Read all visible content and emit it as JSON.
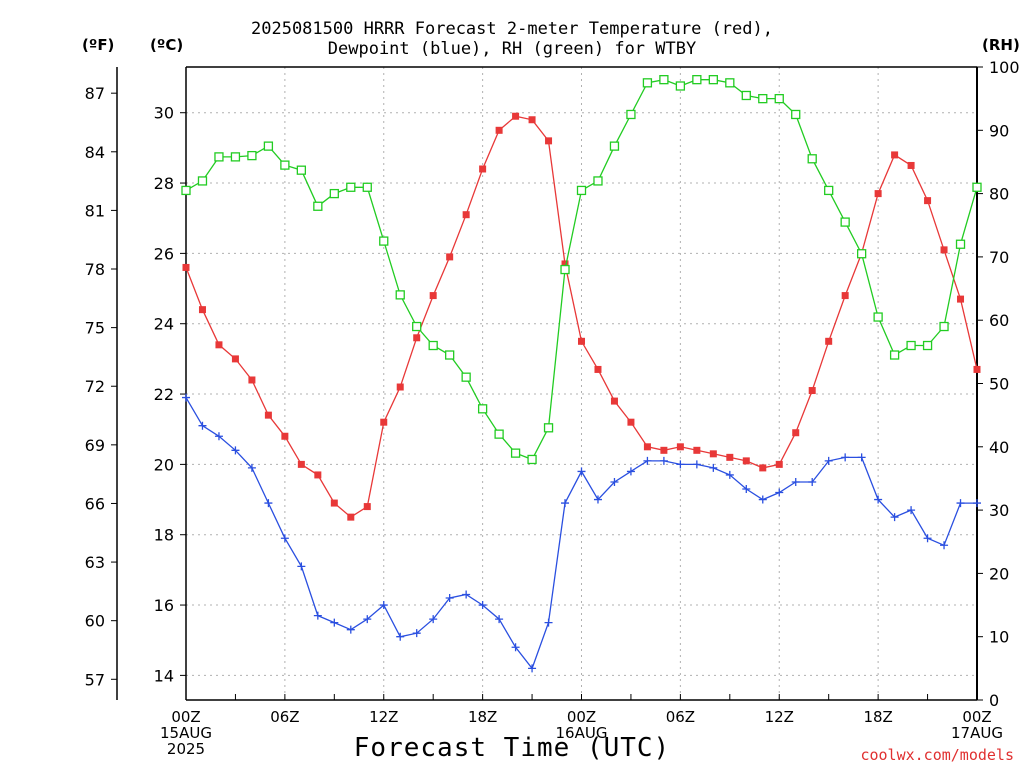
{
  "title_line1": "2025081500 HRRR Forecast 2-meter Temperature (red),",
  "title_line2": "Dewpoint (blue), RH (green) for WTBY",
  "unit_f": "(ºF)",
  "unit_c": "(ºC)",
  "unit_rh": "(RH)",
  "xaxis_title": "Forecast Time (UTC)",
  "watermark": "coolwx.com/models",
  "colors": {
    "temperature": "#e83838",
    "dewpoint": "#2a4fe0",
    "rh": "#22cc22",
    "grid": "#b0b0b0"
  },
  "chart_data": {
    "type": "line",
    "x_hours": [
      0,
      1,
      2,
      3,
      4,
      5,
      6,
      7,
      8,
      9,
      10,
      11,
      12,
      13,
      14,
      15,
      16,
      17,
      18,
      19,
      20,
      21,
      22,
      23,
      24,
      25,
      26,
      27,
      28,
      29,
      30,
      31,
      32,
      33,
      34,
      35,
      36,
      37,
      38,
      39,
      40,
      41,
      42,
      43,
      44,
      45,
      46,
      47,
      48
    ],
    "x_ticks": [
      {
        "hour": 0,
        "lines": [
          "00Z",
          "15AUG",
          "2025"
        ]
      },
      {
        "hour": 6,
        "lines": [
          "06Z"
        ]
      },
      {
        "hour": 12,
        "lines": [
          "12Z"
        ]
      },
      {
        "hour": 18,
        "lines": [
          "18Z"
        ]
      },
      {
        "hour": 24,
        "lines": [
          "00Z",
          "16AUG"
        ]
      },
      {
        "hour": 30,
        "lines": [
          "06Z"
        ]
      },
      {
        "hour": 36,
        "lines": [
          "12Z"
        ]
      },
      {
        "hour": 42,
        "lines": [
          "18Z"
        ]
      },
      {
        "hour": 48,
        "lines": [
          "00Z",
          "17AUG"
        ]
      }
    ],
    "xlim": [
      0,
      48
    ],
    "celsius_axis": {
      "ylim": [
        13.3,
        31.3
      ],
      "ticks": [
        14,
        16,
        18,
        20,
        22,
        24,
        26,
        28,
        30
      ]
    },
    "fahrenheit_axis": {
      "ticks": [
        57,
        60,
        63,
        66,
        69,
        72,
        75,
        78,
        81,
        84,
        87
      ]
    },
    "rh_axis": {
      "ylim": [
        0,
        100
      ],
      "ticks": [
        0,
        10,
        20,
        30,
        40,
        50,
        60,
        70,
        80,
        90,
        100
      ]
    },
    "series": [
      {
        "key": "temperature",
        "axis": "celsius",
        "marker": "filled-square",
        "values": [
          25.6,
          24.4,
          23.4,
          23.0,
          22.4,
          21.4,
          20.8,
          20.0,
          19.7,
          18.9,
          18.5,
          18.8,
          21.2,
          22.2,
          23.6,
          24.8,
          25.9,
          27.1,
          28.4,
          29.5,
          29.9,
          29.8,
          29.2,
          25.7,
          23.5,
          22.7,
          21.8,
          21.2,
          20.5,
          20.4,
          20.5,
          20.4,
          20.3,
          20.2,
          20.1,
          19.9,
          20.0,
          20.9,
          22.1,
          23.5,
          24.8,
          26.0,
          27.7,
          28.8,
          28.5,
          27.5,
          26.1,
          24.7,
          22.7
        ]
      },
      {
        "key": "dewpoint",
        "axis": "celsius",
        "marker": "plus",
        "values": [
          21.9,
          21.1,
          20.8,
          20.4,
          19.9,
          18.9,
          17.9,
          17.1,
          15.7,
          15.5,
          15.3,
          15.6,
          16.0,
          15.1,
          15.2,
          15.6,
          16.2,
          16.3,
          16.0,
          15.6,
          14.8,
          14.2,
          15.5,
          18.9,
          19.8,
          19.0,
          19.5,
          19.8,
          20.1,
          20.1,
          20.0,
          20.0,
          19.9,
          19.7,
          19.3,
          19.0,
          19.2,
          19.5,
          19.5,
          20.1,
          20.2,
          20.2,
          19.0,
          18.5,
          18.7,
          17.9,
          17.7,
          18.9,
          18.9
        ]
      },
      {
        "key": "rh",
        "axis": "rh",
        "marker": "open-square",
        "values": [
          80.5,
          82.0,
          85.8,
          85.8,
          86.0,
          87.5,
          84.5,
          83.7,
          78.0,
          80.0,
          81.0,
          81.0,
          72.5,
          64.0,
          59.0,
          56.0,
          54.5,
          51.0,
          46.0,
          42.0,
          39.0,
          38.0,
          43.0,
          68.0,
          80.5,
          82.0,
          87.5,
          92.5,
          97.5,
          98.0,
          97.0,
          98.0,
          98.0,
          97.5,
          95.5,
          95.0,
          95.0,
          92.5,
          85.5,
          80.5,
          75.5,
          70.5,
          60.5,
          54.5,
          56.0,
          56.0,
          59.0,
          72.0,
          81.0
        ]
      }
    ]
  }
}
